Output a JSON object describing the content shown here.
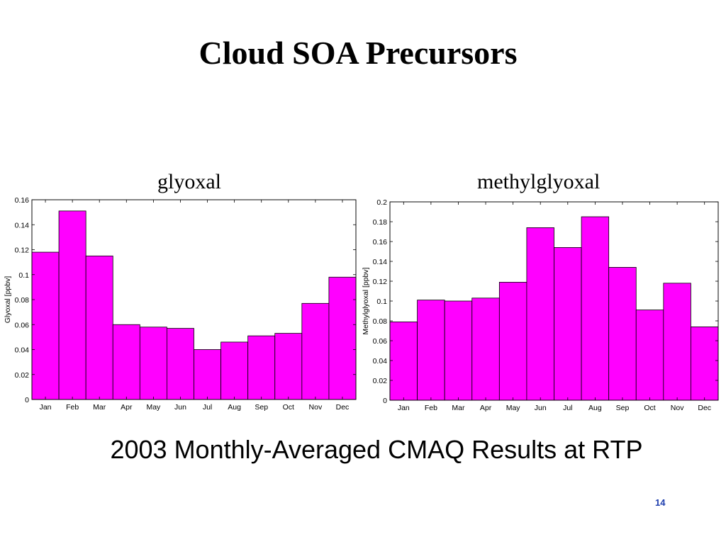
{
  "slide": {
    "title": "Cloud SOA Precursors",
    "subtitle": "2003 Monthly-Averaged CMAQ Results at RTP",
    "page_number": "14"
  },
  "colors": {
    "bar_fill": "#ff00ff",
    "bar_stroke": "#000000",
    "page_number": "#1f3fae"
  },
  "chart_data": [
    {
      "type": "bar",
      "title": "glyoxal",
      "xlabel": "",
      "ylabel": "Glyoxal [ppbv]",
      "categories": [
        "Jan",
        "Feb",
        "Mar",
        "Apr",
        "May",
        "Jun",
        "Jul",
        "Aug",
        "Sep",
        "Oct",
        "Nov",
        "Dec"
      ],
      "values": [
        0.118,
        0.151,
        0.115,
        0.06,
        0.058,
        0.057,
        0.04,
        0.046,
        0.051,
        0.053,
        0.077,
        0.098
      ],
      "ylim": [
        0,
        0.16
      ],
      "yticks": [
        0,
        0.02,
        0.04,
        0.06,
        0.08,
        0.1,
        0.12,
        0.14,
        0.16
      ],
      "ytick_labels": [
        "0",
        "0.02",
        "0.04",
        "0.06",
        "0.08",
        "0.1",
        "0.12",
        "0.14",
        "0.16"
      ],
      "grid": false,
      "legend": "none"
    },
    {
      "type": "bar",
      "title": "methylglyoxal",
      "xlabel": "",
      "ylabel": "Methylglyoxal [ppbv]",
      "categories": [
        "Jan",
        "Feb",
        "Mar",
        "Apr",
        "May",
        "Jun",
        "Jul",
        "Aug",
        "Sep",
        "Oct",
        "Nov",
        "Dec"
      ],
      "values": [
        0.079,
        0.101,
        0.1,
        0.103,
        0.119,
        0.174,
        0.154,
        0.185,
        0.134,
        0.091,
        0.118,
        0.074
      ],
      "ylim": [
        0,
        0.2
      ],
      "yticks": [
        0,
        0.02,
        0.04,
        0.06,
        0.08,
        0.1,
        0.12,
        0.14,
        0.16,
        0.18,
        0.2
      ],
      "ytick_labels": [
        "0",
        "0.02",
        "0.04",
        "0.06",
        "0.08",
        "0.1",
        "0.12",
        "0.14",
        "0.16",
        "0.18",
        "0.2"
      ],
      "grid": false,
      "legend": "none"
    }
  ]
}
